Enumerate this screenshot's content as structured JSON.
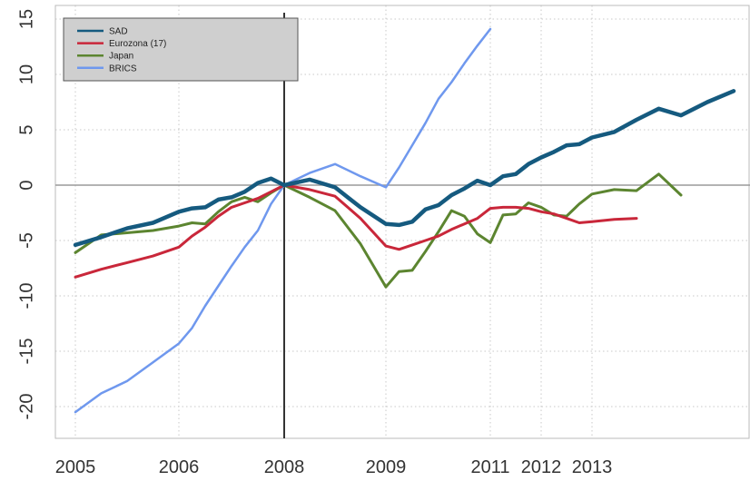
{
  "chart_data": {
    "type": "line",
    "title": "",
    "xlabel": "",
    "ylabel": "",
    "xlim": [
      2005,
      2013.6
    ],
    "ylim": [
      -21.5,
      15.8
    ],
    "x_ticks": [
      {
        "value": 2005,
        "label": "2005"
      },
      {
        "value": 2006,
        "label": "2006"
      },
      {
        "value": 2008,
        "label": "2008"
      },
      {
        "value": 2009,
        "label": "2009"
      },
      {
        "value": 2011,
        "label": "2011"
      },
      {
        "value": 2012,
        "label": "2012"
      },
      {
        "value": 2013,
        "label": "2013"
      }
    ],
    "y_ticks": [
      {
        "value": 15,
        "label": "15"
      },
      {
        "value": 10,
        "label": "10"
      },
      {
        "value": 5,
        "label": "5"
      },
      {
        "value": 0,
        "label": "0"
      },
      {
        "value": -5,
        "label": "-5"
      },
      {
        "value": -10,
        "label": "-10"
      },
      {
        "value": -15,
        "label": "-15"
      },
      {
        "value": -20,
        "label": "-20"
      }
    ],
    "x_gridlines": [
      2005,
      2006,
      2007,
      2009,
      2010,
      2011,
      2012,
      2013
    ],
    "reference_vertical_line": 2008,
    "reference_horizontal_line": 0,
    "grid": true,
    "legend_position": "top-left",
    "series": [
      {
        "name": "SAD",
        "color": "#155a7f",
        "points": [
          [
            2005.0,
            -5.4
          ],
          [
            2005.25,
            -4.7
          ],
          [
            2005.5,
            -3.9
          ],
          [
            2005.75,
            -3.4
          ],
          [
            2006.0,
            -2.4
          ],
          [
            2006.25,
            -2.1
          ],
          [
            2006.5,
            -2.0
          ],
          [
            2006.75,
            -1.3
          ],
          [
            2007.0,
            -1.1
          ],
          [
            2007.25,
            -0.6
          ],
          [
            2007.5,
            0.2
          ],
          [
            2007.75,
            0.6
          ],
          [
            2008.0,
            0.0
          ],
          [
            2008.25,
            0.5
          ],
          [
            2008.5,
            -0.2
          ],
          [
            2008.75,
            -2.0
          ],
          [
            2009.0,
            -3.5
          ],
          [
            2009.25,
            -3.6
          ],
          [
            2009.5,
            -3.3
          ],
          [
            2009.75,
            -2.2
          ],
          [
            2010.0,
            -1.8
          ],
          [
            2010.25,
            -0.9
          ],
          [
            2010.5,
            -0.3
          ],
          [
            2010.75,
            0.4
          ],
          [
            2011.0,
            0.0
          ],
          [
            2011.25,
            0.8
          ],
          [
            2011.5,
            1.0
          ],
          [
            2011.75,
            1.9
          ],
          [
            2012.0,
            2.5
          ],
          [
            2012.25,
            3.0
          ],
          [
            2012.5,
            3.6
          ],
          [
            2012.75,
            3.7
          ],
          [
            2013.0,
            4.3
          ],
          [
            2013.25,
            4.8
          ],
          [
            2013.5,
            5.9
          ],
          [
            2013.75,
            6.9
          ],
          [
            2014.0,
            6.3
          ],
          [
            2014.25,
            7.5
          ],
          [
            2014.5,
            8.5
          ]
        ]
      },
      {
        "name": "Eurozona (17)",
        "color": "#c9273a",
        "points": [
          [
            2005.0,
            -8.3
          ],
          [
            2005.25,
            -7.6
          ],
          [
            2005.5,
            -7.0
          ],
          [
            2005.75,
            -6.4
          ],
          [
            2006.0,
            -5.6
          ],
          [
            2006.25,
            -4.6
          ],
          [
            2006.5,
            -3.8
          ],
          [
            2006.75,
            -2.8
          ],
          [
            2007.0,
            -2.0
          ],
          [
            2007.25,
            -1.6
          ],
          [
            2007.5,
            -1.2
          ],
          [
            2007.75,
            -0.6
          ],
          [
            2008.0,
            0.0
          ],
          [
            2008.25,
            -0.4
          ],
          [
            2008.5,
            -1.0
          ],
          [
            2008.75,
            -3.0
          ],
          [
            2009.0,
            -5.5
          ],
          [
            2009.25,
            -5.8
          ],
          [
            2009.5,
            -5.4
          ],
          [
            2009.75,
            -5.0
          ],
          [
            2010.0,
            -4.6
          ],
          [
            2010.25,
            -4.0
          ],
          [
            2010.5,
            -3.5
          ],
          [
            2010.75,
            -3.0
          ],
          [
            2011.0,
            -2.1
          ],
          [
            2011.25,
            -2.0
          ],
          [
            2011.5,
            -2.0
          ],
          [
            2011.75,
            -2.1
          ],
          [
            2012.0,
            -2.4
          ],
          [
            2012.25,
            -2.6
          ],
          [
            2012.5,
            -3.0
          ],
          [
            2012.75,
            -3.4
          ],
          [
            2013.0,
            -3.3
          ],
          [
            2013.25,
            -3.1
          ],
          [
            2013.5,
            -3.0
          ]
        ]
      },
      {
        "name": "Japan",
        "color": "#5c8530",
        "points": [
          [
            2005.0,
            -6.1
          ],
          [
            2005.25,
            -4.5
          ],
          [
            2005.5,
            -4.3
          ],
          [
            2005.75,
            -4.1
          ],
          [
            2006.0,
            -3.7
          ],
          [
            2006.25,
            -3.4
          ],
          [
            2006.5,
            -3.5
          ],
          [
            2006.75,
            -2.4
          ],
          [
            2007.0,
            -1.5
          ],
          [
            2007.25,
            -1.1
          ],
          [
            2007.5,
            -1.5
          ],
          [
            2007.75,
            -0.7
          ],
          [
            2008.0,
            0.0
          ],
          [
            2008.25,
            -1.1
          ],
          [
            2008.5,
            -2.3
          ],
          [
            2008.75,
            -5.3
          ],
          [
            2009.0,
            -9.2
          ],
          [
            2009.25,
            -7.8
          ],
          [
            2009.5,
            -7.7
          ],
          [
            2009.75,
            -6.0
          ],
          [
            2010.0,
            -4.2
          ],
          [
            2010.25,
            -2.3
          ],
          [
            2010.5,
            -2.8
          ],
          [
            2010.75,
            -4.4
          ],
          [
            2011.0,
            -5.2
          ],
          [
            2011.25,
            -2.7
          ],
          [
            2011.5,
            -2.6
          ],
          [
            2011.75,
            -1.6
          ],
          [
            2012.0,
            -2.0
          ],
          [
            2012.25,
            -2.7
          ],
          [
            2012.5,
            -2.8
          ],
          [
            2012.75,
            -1.7
          ],
          [
            2013.0,
            -0.8
          ],
          [
            2013.25,
            -0.4
          ],
          [
            2013.5,
            -0.5
          ],
          [
            2013.75,
            1.0
          ],
          [
            2014.0,
            -0.9
          ]
        ]
      },
      {
        "name": "BRICS",
        "color": "#6f98ee",
        "points": [
          [
            2005.0,
            -20.5
          ],
          [
            2005.25,
            -18.8
          ],
          [
            2005.5,
            -17.7
          ],
          [
            2005.75,
            -16.0
          ],
          [
            2006.0,
            -14.3
          ],
          [
            2006.25,
            -12.9
          ],
          [
            2006.5,
            -10.9
          ],
          [
            2006.75,
            -9.1
          ],
          [
            2007.0,
            -7.3
          ],
          [
            2007.25,
            -5.6
          ],
          [
            2007.5,
            -4.1
          ],
          [
            2007.75,
            -1.7
          ],
          [
            2008.0,
            0.0
          ],
          [
            2008.25,
            1.1
          ],
          [
            2008.5,
            1.9
          ],
          [
            2008.75,
            0.8
          ],
          [
            2009.0,
            -0.2
          ],
          [
            2009.25,
            1.6
          ],
          [
            2009.5,
            3.6
          ],
          [
            2009.75,
            5.6
          ],
          [
            2010.0,
            7.8
          ],
          [
            2010.25,
            9.3
          ],
          [
            2010.5,
            11.0
          ],
          [
            2010.75,
            12.6
          ],
          [
            2011.0,
            14.1
          ]
        ]
      }
    ]
  }
}
